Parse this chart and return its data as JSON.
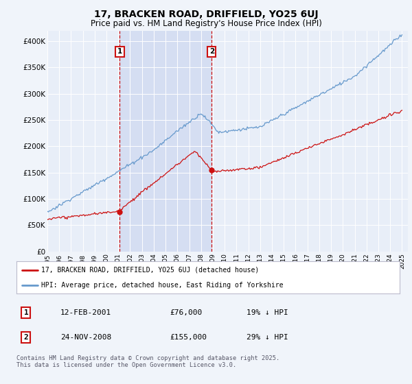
{
  "title": "17, BRACKEN ROAD, DRIFFIELD, YO25 6UJ",
  "subtitle": "Price paid vs. HM Land Registry's House Price Index (HPI)",
  "title_fontsize": 10,
  "subtitle_fontsize": 8.5,
  "bg_color": "#f0f4fa",
  "plot_bg_color": "#e8eef8",
  "shade_color": "#cdd8f0",
  "line1_color": "#cc1111",
  "line2_color": "#6699cc",
  "vline_color": "#cc1111",
  "ylim": [
    0,
    420000
  ],
  "yticks": [
    0,
    50000,
    100000,
    150000,
    200000,
    250000,
    300000,
    350000,
    400000
  ],
  "ytick_labels": [
    "£0",
    "£50K",
    "£100K",
    "£150K",
    "£200K",
    "£250K",
    "£300K",
    "£350K",
    "£400K"
  ],
  "legend_line1": "17, BRACKEN ROAD, DRIFFIELD, YO25 6UJ (detached house)",
  "legend_line2": "HPI: Average price, detached house, East Riding of Yorkshire",
  "table_rows": [
    [
      "1",
      "12-FEB-2001",
      "£76,000",
      "19% ↓ HPI"
    ],
    [
      "2",
      "24-NOV-2008",
      "£155,000",
      "29% ↓ HPI"
    ]
  ],
  "footer": "Contains HM Land Registry data © Crown copyright and database right 2025.\nThis data is licensed under the Open Government Licence v3.0.",
  "xtick_years": [
    "1995",
    "1996",
    "1997",
    "1998",
    "1999",
    "2000",
    "2001",
    "2002",
    "2003",
    "2004",
    "2005",
    "2006",
    "2007",
    "2008",
    "2009",
    "2010",
    "2011",
    "2012",
    "2013",
    "2014",
    "2015",
    "2016",
    "2017",
    "2018",
    "2019",
    "2020",
    "2021",
    "2022",
    "2023",
    "2024",
    "2025"
  ],
  "sale1_year": 2001.12,
  "sale1_value": 76000,
  "sale2_year": 2008.9,
  "sale2_value": 155000
}
